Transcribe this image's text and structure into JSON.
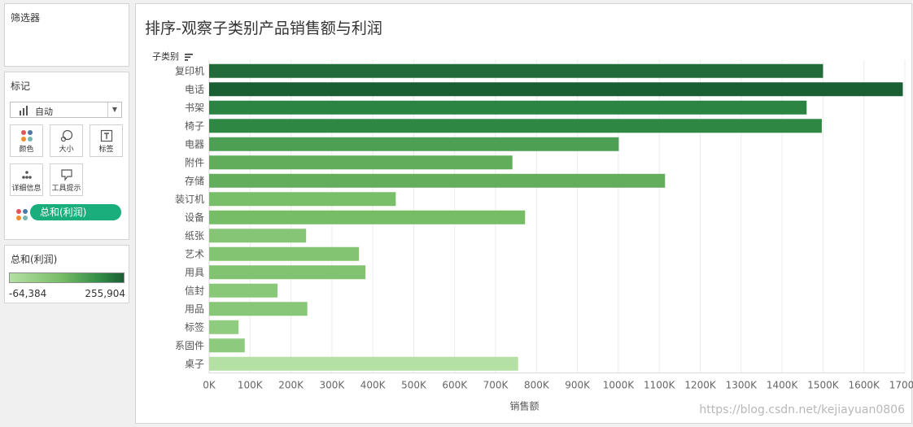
{
  "filters_panel": {
    "title": "筛选器"
  },
  "marks_panel": {
    "title": "标记",
    "mark_type": "自动",
    "buttons": [
      {
        "label": "颜色",
        "icon": "color-dots-icon"
      },
      {
        "label": "大小",
        "icon": "size-icon"
      },
      {
        "label": "标签",
        "icon": "label-icon"
      },
      {
        "label": "详细信息",
        "icon": "detail-icon"
      },
      {
        "label": "工具提示",
        "icon": "tooltip-icon"
      }
    ],
    "color_pill": "总和(利润)"
  },
  "legend": {
    "title": "总和(利润)",
    "min": "-64,384",
    "max": "255,904"
  },
  "sheet": {
    "title": "排序-观察子类别产品销售额与利润",
    "row_header": "子类别",
    "watermark": "https://blog.csdn.net/kejiayuan0806"
  },
  "chart_data": {
    "type": "bar",
    "orientation": "horizontal",
    "categories": [
      "复印机",
      "电话",
      "书架",
      "椅子",
      "电器",
      "附件",
      "存储",
      "装订机",
      "设备",
      "纸张",
      "艺术",
      "用具",
      "信封",
      "用品",
      "标签",
      "系固件",
      "桌子"
    ],
    "values": [
      1500000,
      1695000,
      1460000,
      1497000,
      1001000,
      741000,
      1114000,
      456000,
      772000,
      237000,
      366000,
      382000,
      167000,
      240000,
      72000,
      87000,
      755000
    ],
    "profit": [
      235000,
      255904,
      200000,
      195000,
      145000,
      115000,
      112000,
      75000,
      80000,
      45000,
      52000,
      55000,
      35000,
      40000,
      20000,
      25000,
      -64384
    ],
    "xlabel": "销售额",
    "x_ticks": [
      "0K",
      "100K",
      "200K",
      "300K",
      "400K",
      "500K",
      "600K",
      "700K",
      "800K",
      "900K",
      "1000K",
      "1100K",
      "1200K",
      "1300K",
      "1400K",
      "1500K",
      "1600K",
      "1700K"
    ],
    "xlim": [
      0,
      1700000
    ],
    "grid": true,
    "color_scale": [
      "#b4e0a4",
      "#1a5e33"
    ]
  }
}
